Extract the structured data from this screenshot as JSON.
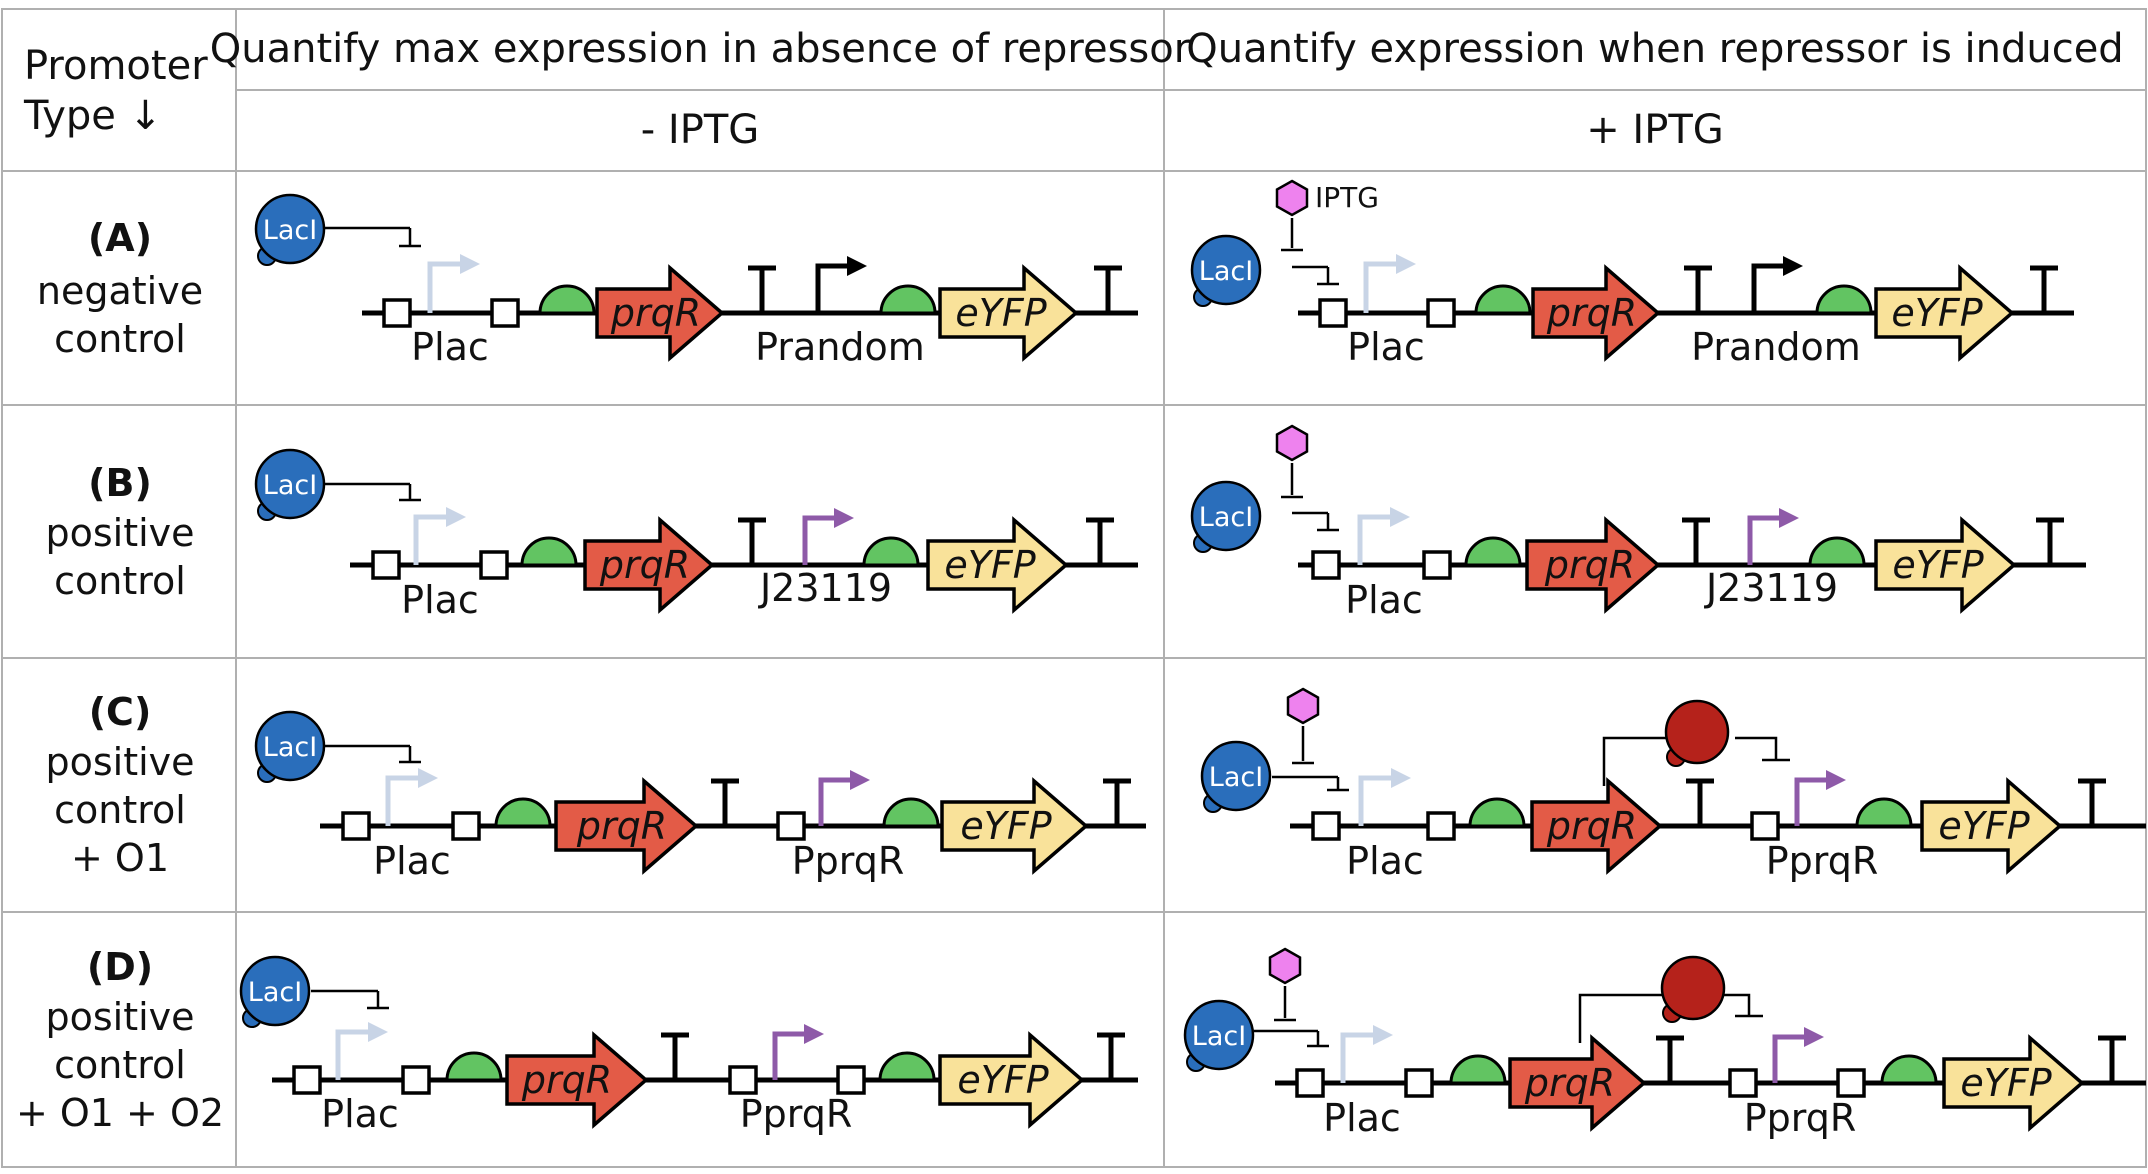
{
  "header": {
    "row_header_line1": "Promoter",
    "row_header_line2": "Type ↓",
    "col1_title": "Quantify max expression in absence of repressor",
    "col2_title": "Quantify expression when repressor is induced",
    "col1_condition": "- IPTG",
    "col2_condition": "+ IPTG"
  },
  "rows": [
    {
      "id": "A",
      "label_bold": "(A)",
      "label_lines": [
        "negative",
        "control"
      ]
    },
    {
      "id": "B",
      "label_bold": "(B)",
      "label_lines": [
        "positive",
        "control"
      ]
    },
    {
      "id": "C",
      "label_bold": "(C)",
      "label_lines": [
        "positive",
        "control",
        "+ O1"
      ]
    },
    {
      "id": "D",
      "label_bold": "(D)",
      "label_lines": [
        "positive",
        "control",
        "+ O1 + O2"
      ]
    }
  ],
  "parts": {
    "repressor": "LacI",
    "inducer": "IPTG",
    "promoter_lac": "Plac",
    "promoter_random": "Prandom",
    "promoter_j": "J23119",
    "promoter_prqr": "PprqR",
    "gene_repressor": "prqR",
    "gene_reporter": "eYFP"
  },
  "colors": {
    "lacI": "#2a6ebb",
    "iptg": "#ee82ee",
    "rbs": "#62c462",
    "prqR_gene": "#e35b47",
    "eyfp_gene": "#f9e29a",
    "plac_arrow": "#c8d4e6",
    "prqr_arrow": "#8e5aa8",
    "prqR_protein": "#b5221b",
    "grid": "#b0b0b0"
  }
}
